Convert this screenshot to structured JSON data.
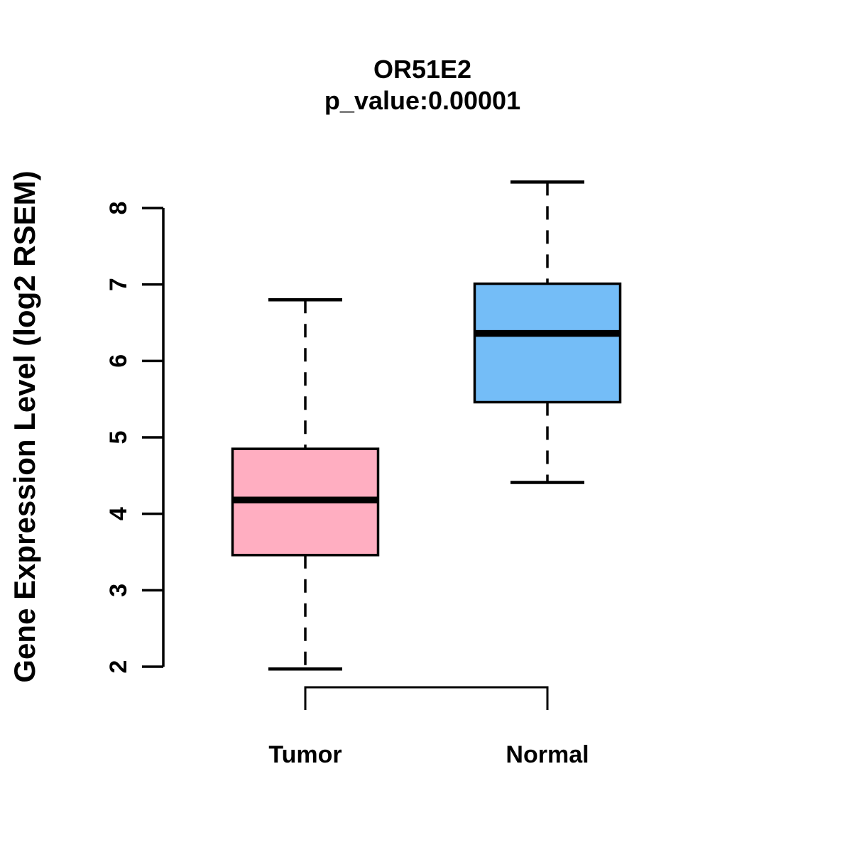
{
  "figure": {
    "background_color": "#FFFFFF",
    "text_color": "#000000",
    "line_color": "#000000"
  },
  "chart_data": {
    "type": "boxplot",
    "title": "OR51E2",
    "subtitle": "p_value:0.00001",
    "ylabel": "Gene Expression Level (log2 RSEM)",
    "xlabel": "",
    "ylim": [
      2,
      8
    ],
    "yticks": [
      2,
      3,
      4,
      5,
      6,
      7,
      8
    ],
    "grid": "off",
    "legend": "none",
    "whisker_style": "dashed",
    "groups": [
      {
        "name": "Tumor",
        "color": "#FFAEC1",
        "min": 1.97,
        "q1": 3.46,
        "median": 4.18,
        "q3": 4.85,
        "max": 6.8
      },
      {
        "name": "Normal",
        "color": "#74BDF7",
        "min": 4.41,
        "q1": 5.46,
        "median": 6.36,
        "q3": 7.01,
        "max": 8.34
      }
    ]
  }
}
